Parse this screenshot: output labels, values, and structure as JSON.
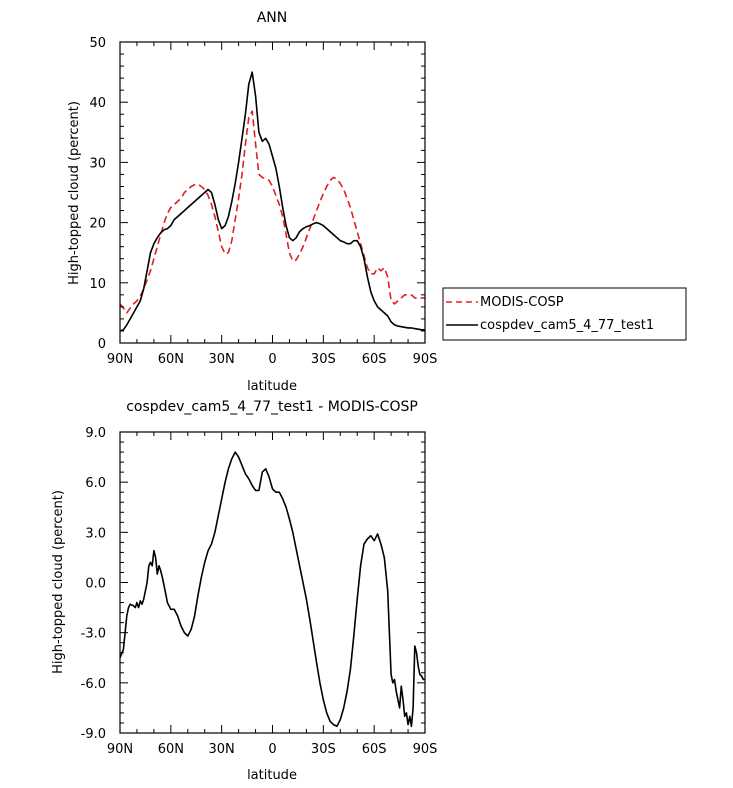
{
  "chart_data": [
    {
      "type": "line",
      "title": "ANN",
      "xlabel": "latitude",
      "ylabel": "High-topped cloud (percent)",
      "xlim": [
        90,
        -90
      ],
      "ylim": [
        0,
        50
      ],
      "x_ticks": [
        90,
        60,
        30,
        0,
        -30,
        -60,
        -90
      ],
      "x_tick_labels": [
        "90N",
        "60N",
        "30N",
        "0",
        "30S",
        "60S",
        "90S"
      ],
      "y_ticks": [
        0,
        10,
        20,
        30,
        40,
        50
      ],
      "y_tick_labels": [
        "0",
        "10",
        "20",
        "30",
        "40",
        "50"
      ],
      "legend": "right",
      "series": [
        {
          "name": "MODIS-COSP",
          "color": "#e02020",
          "dash": "dashed",
          "x": [
            90,
            88,
            86,
            84,
            82,
            80,
            78,
            76,
            74,
            72,
            70,
            68,
            66,
            64,
            62,
            60,
            58,
            56,
            54,
            52,
            50,
            48,
            46,
            44,
            42,
            40,
            38,
            36,
            34,
            32,
            30,
            28,
            26,
            24,
            22,
            20,
            18,
            16,
            14,
            12,
            10,
            8,
            6,
            4,
            2,
            0,
            -2,
            -4,
            -6,
            -8,
            -10,
            -12,
            -14,
            -16,
            -18,
            -20,
            -22,
            -24,
            -26,
            -28,
            -30,
            -32,
            -34,
            -36,
            -38,
            -40,
            -42,
            -44,
            -46,
            -48,
            -50,
            -52,
            -54,
            -56,
            -58,
            -60,
            -62,
            -64,
            -66,
            -68,
            -70,
            -72,
            -74,
            -76,
            -78,
            -80,
            -82,
            -84,
            -86,
            -88,
            -90
          ],
          "y": [
            6.5,
            5.8,
            5.0,
            5.8,
            6.5,
            7.0,
            7.8,
            9.0,
            10.5,
            12.0,
            14.0,
            16.0,
            18.0,
            20.0,
            21.5,
            22.5,
            23.0,
            23.5,
            24.0,
            25.0,
            25.5,
            26.0,
            26.3,
            26.4,
            26.0,
            25.5,
            24.5,
            23.0,
            21.0,
            18.5,
            16.0,
            14.8,
            15.0,
            17.0,
            20.5,
            24.0,
            28.0,
            33.0,
            37.5,
            38.5,
            33.0,
            28.0,
            27.5,
            27.3,
            27.0,
            26.0,
            24.5,
            23.0,
            21.0,
            18.0,
            15.0,
            13.6,
            13.8,
            14.8,
            16.0,
            17.5,
            19.0,
            20.5,
            22.0,
            23.5,
            24.8,
            26.0,
            27.0,
            27.5,
            27.2,
            26.5,
            25.5,
            24.0,
            22.5,
            20.5,
            18.5,
            16.5,
            14.5,
            12.5,
            11.5,
            11.5,
            12.5,
            12.0,
            12.5,
            11.0,
            7.0,
            6.5,
            7.0,
            7.5,
            8.0,
            8.0,
            8.0,
            7.5,
            7.5,
            7.5,
            7.5
          ]
        },
        {
          "name": "cospdev_cam5_4_77_test1",
          "color": "#000000",
          "dash": "solid",
          "x": [
            90,
            88,
            86,
            84,
            82,
            80,
            78,
            76,
            74,
            72,
            70,
            68,
            66,
            64,
            62,
            60,
            58,
            56,
            54,
            52,
            50,
            48,
            46,
            44,
            42,
            40,
            38,
            36,
            34,
            32,
            30,
            28,
            26,
            24,
            22,
            20,
            18,
            16,
            14,
            12,
            10,
            8,
            6,
            4,
            2,
            0,
            -2,
            -4,
            -6,
            -8,
            -10,
            -12,
            -14,
            -16,
            -18,
            -20,
            -22,
            -24,
            -26,
            -28,
            -30,
            -32,
            -34,
            -36,
            -38,
            -40,
            -42,
            -44,
            -46,
            -48,
            -50,
            -52,
            -54,
            -56,
            -58,
            -60,
            -62,
            -64,
            -66,
            -68,
            -70,
            -72,
            -74,
            -76,
            -78,
            -80,
            -82,
            -84,
            -86,
            -88,
            -90
          ],
          "y": [
            2.0,
            2.2,
            3.0,
            4.0,
            5.0,
            6.0,
            7.0,
            9.0,
            12.0,
            15.0,
            16.5,
            17.5,
            18.3,
            18.8,
            19.0,
            19.5,
            20.5,
            21.0,
            21.5,
            22.0,
            22.5,
            23.0,
            23.5,
            24.0,
            24.5,
            25.0,
            25.5,
            25.0,
            23.0,
            20.5,
            19.0,
            19.5,
            21.0,
            23.5,
            26.5,
            30.0,
            34.0,
            38.0,
            43.0,
            45.0,
            41.0,
            35.0,
            33.5,
            34.0,
            33.0,
            31.0,
            29.0,
            26.0,
            22.5,
            19.5,
            17.5,
            17.0,
            17.5,
            18.5,
            19.0,
            19.3,
            19.5,
            19.8,
            20.0,
            19.8,
            19.5,
            19.0,
            18.5,
            18.0,
            17.5,
            17.0,
            16.8,
            16.5,
            16.5,
            17.0,
            17.0,
            16.0,
            14.0,
            11.0,
            8.5,
            7.0,
            6.0,
            5.5,
            5.0,
            4.5,
            3.5,
            3.0,
            2.8,
            2.7,
            2.6,
            2.5,
            2.5,
            2.4,
            2.3,
            2.2,
            2.2
          ]
        }
      ]
    },
    {
      "type": "line",
      "title": "cospdev_cam5_4_77_test1 - MODIS-COSP",
      "xlabel": "latitude",
      "ylabel": "High-topped cloud (percent)",
      "xlim": [
        90,
        -90
      ],
      "ylim": [
        -9.0,
        9.0
      ],
      "x_ticks": [
        90,
        60,
        30,
        0,
        -30,
        -60,
        -90
      ],
      "x_tick_labels": [
        "90N",
        "60N",
        "30N",
        "0",
        "30S",
        "60S",
        "90S"
      ],
      "y_ticks": [
        -9.0,
        -6.0,
        -3.0,
        0.0,
        3.0,
        6.0,
        9.0
      ],
      "y_tick_labels": [
        "-9.0",
        "-6.0",
        "-3.0",
        "0.0",
        "3.0",
        "6.0",
        "9.0"
      ],
      "series": [
        {
          "color": "#000000",
          "dash": "solid",
          "x": [
            90,
            88,
            86,
            85,
            84,
            82,
            81,
            80,
            79,
            78,
            77,
            76,
            75,
            74,
            73,
            72,
            71,
            70,
            69,
            68,
            67,
            66,
            65,
            64,
            63,
            62,
            60,
            58,
            56,
            54,
            52,
            50,
            48,
            46,
            44,
            42,
            40,
            38,
            36,
            34,
            32,
            30,
            28,
            26,
            24,
            22,
            20,
            18,
            16,
            14,
            12,
            10,
            8,
            6,
            4,
            2,
            0,
            -2,
            -4,
            -6,
            -8,
            -10,
            -12,
            -14,
            -16,
            -18,
            -20,
            -22,
            -24,
            -26,
            -28,
            -30,
            -32,
            -34,
            -36,
            -38,
            -40,
            -42,
            -44,
            -46,
            -48,
            -50,
            -52,
            -54,
            -56,
            -58,
            -60,
            -62,
            -64,
            -66,
            -68,
            -69,
            -70,
            -71,
            -72,
            -73,
            -74,
            -75,
            -76,
            -77,
            -78,
            -79,
            -80,
            -81,
            -82,
            -83,
            -84,
            -85,
            -86,
            -87,
            -88,
            -89,
            -90
          ],
          "y": [
            -4.5,
            -4.0,
            -2.0,
            -1.5,
            -1.3,
            -1.4,
            -1.5,
            -1.2,
            -1.5,
            -1.1,
            -1.3,
            -1.0,
            -0.5,
            0.0,
            1.0,
            1.2,
            1.0,
            1.9,
            1.5,
            0.5,
            1.0,
            0.7,
            0.3,
            -0.2,
            -0.7,
            -1.2,
            -1.6,
            -1.6,
            -2.0,
            -2.6,
            -3.0,
            -3.2,
            -2.8,
            -2.0,
            -0.8,
            0.3,
            1.2,
            1.9,
            2.3,
            3.0,
            4.0,
            5.0,
            6.0,
            6.8,
            7.4,
            7.8,
            7.5,
            7.0,
            6.5,
            6.2,
            5.8,
            5.5,
            5.5,
            6.6,
            6.8,
            6.3,
            5.6,
            5.4,
            5.4,
            5.0,
            4.5,
            3.8,
            3.0,
            2.0,
            1.0,
            0.0,
            -1.0,
            -2.2,
            -3.5,
            -4.8,
            -6.0,
            -7.0,
            -7.8,
            -8.3,
            -8.5,
            -8.6,
            -8.2,
            -7.5,
            -6.5,
            -5.2,
            -3.2,
            -1.0,
            1.0,
            2.3,
            2.6,
            2.8,
            2.5,
            2.9,
            2.3,
            1.5,
            -0.5,
            -3.0,
            -5.5,
            -6.0,
            -5.8,
            -6.5,
            -7.0,
            -7.5,
            -6.2,
            -7.0,
            -8.0,
            -7.8,
            -8.5,
            -8.0,
            -8.6,
            -7.5,
            -3.8,
            -4.2,
            -5.0,
            -5.5,
            -5.6,
            -5.8,
            -5.8
          ]
        }
      ]
    }
  ]
}
